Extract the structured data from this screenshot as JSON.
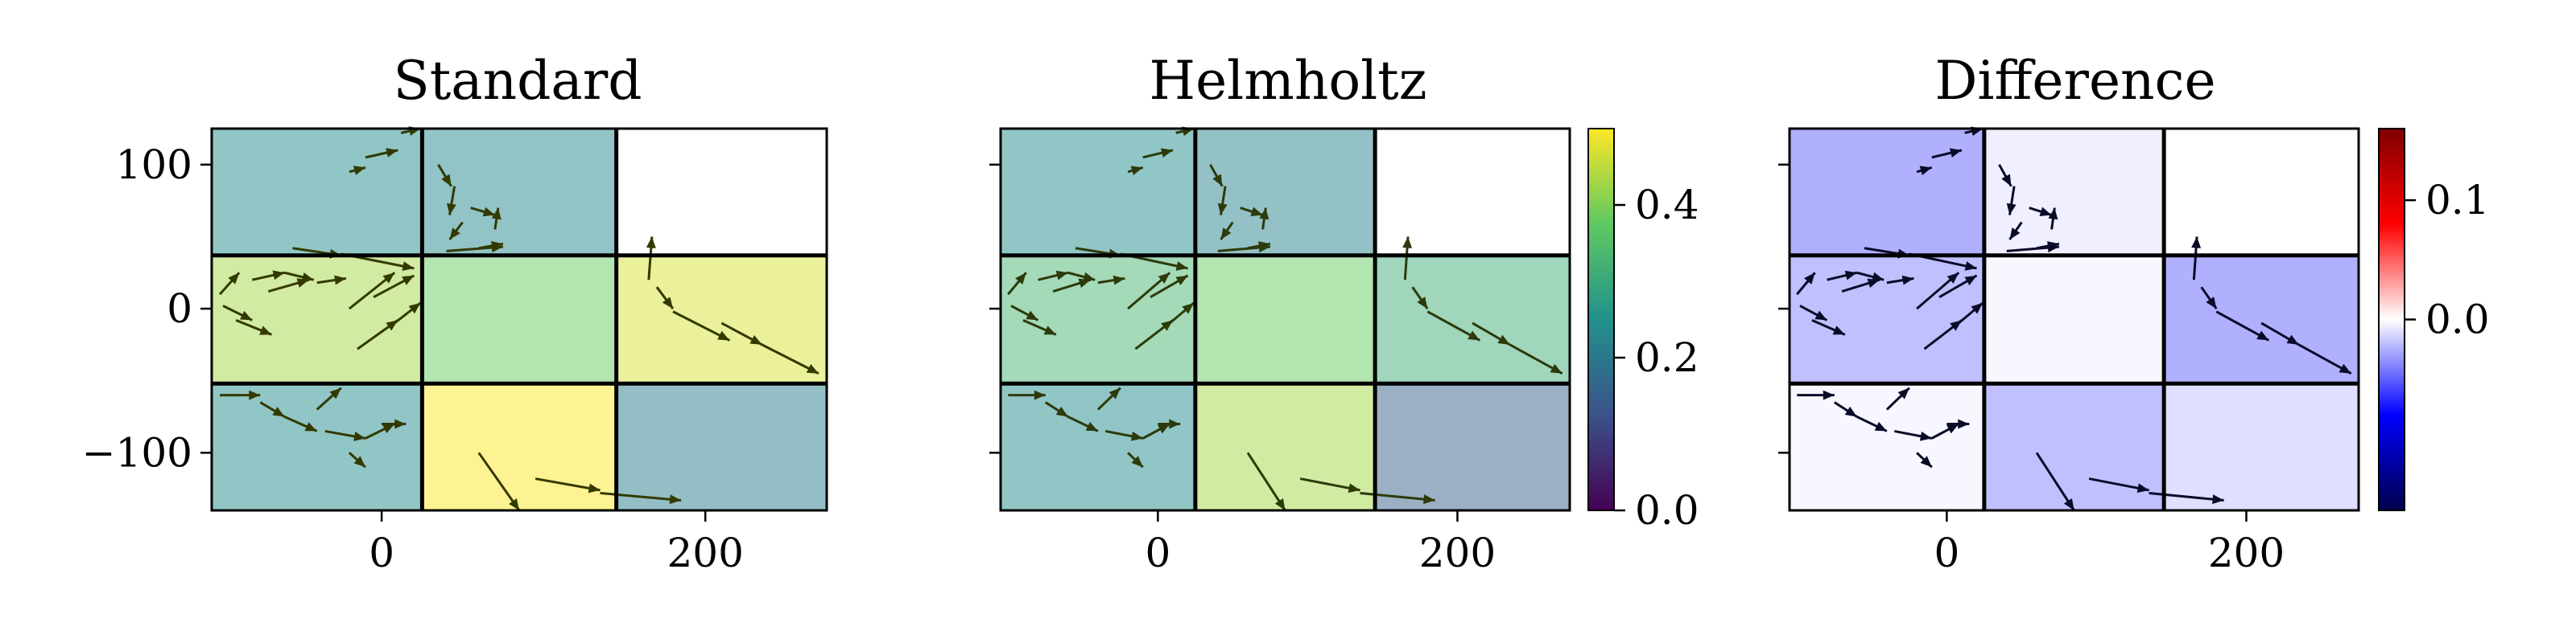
{
  "chart_data": [
    {
      "type": "heatmap",
      "title": "Standard",
      "xlim": [
        -105,
        275
      ],
      "ylim": [
        -140,
        125
      ],
      "x_ticks": [
        {
          "value": 0,
          "label": "0"
        },
        {
          "value": 200,
          "label": "200"
        }
      ],
      "y_ticks": [
        {
          "value": 100,
          "label": "100"
        },
        {
          "value": 0,
          "label": "0"
        },
        {
          "value": -100,
          "label": "−100"
        }
      ],
      "cells": [
        {
          "row": 0,
          "col": 0,
          "value": 0.24
        },
        {
          "row": 0,
          "col": 1,
          "value": 0.23
        },
        {
          "row": 0,
          "col": 2,
          "value": null
        },
        {
          "row": 1,
          "col": 0,
          "value": 0.43
        },
        {
          "row": 1,
          "col": 1,
          "value": 0.38
        },
        {
          "row": 1,
          "col": 2,
          "value": 0.47
        },
        {
          "row": 2,
          "col": 0,
          "value": 0.24
        },
        {
          "row": 2,
          "col": 1,
          "value": 0.5
        },
        {
          "row": 2,
          "col": 2,
          "value": 0.21
        }
      ]
    },
    {
      "type": "heatmap",
      "title": "Helmholtz",
      "xlim": [
        -105,
        275
      ],
      "ylim": [
        -140,
        125
      ],
      "x_ticks": [
        {
          "value": 0,
          "label": "0"
        },
        {
          "value": 200,
          "label": "200"
        }
      ],
      "cells": [
        {
          "row": 0,
          "col": 0,
          "value": 0.24
        },
        {
          "row": 0,
          "col": 1,
          "value": 0.22
        },
        {
          "row": 0,
          "col": 2,
          "value": null
        },
        {
          "row": 1,
          "col": 0,
          "value": 0.33
        },
        {
          "row": 1,
          "col": 1,
          "value": 0.38
        },
        {
          "row": 1,
          "col": 2,
          "value": 0.31
        },
        {
          "row": 2,
          "col": 0,
          "value": 0.24
        },
        {
          "row": 2,
          "col": 1,
          "value": 0.43
        },
        {
          "row": 2,
          "col": 2,
          "value": 0.15
        }
      ],
      "colorbar": {
        "colormap": "viridis",
        "range": [
          0.0,
          0.5
        ],
        "ticks": [
          {
            "value": 0.0,
            "label": "0.0"
          },
          {
            "value": 0.2,
            "label": "0.2"
          },
          {
            "value": 0.4,
            "label": "0.4"
          }
        ]
      }
    },
    {
      "type": "heatmap",
      "title": "Difference",
      "xlim": [
        -105,
        275
      ],
      "ylim": [
        -140,
        125
      ],
      "x_ticks": [
        {
          "value": 0,
          "label": "0"
        },
        {
          "value": 200,
          "label": "200"
        }
      ],
      "cells": [
        {
          "row": 0,
          "col": 0,
          "value": -0.05
        },
        {
          "row": 0,
          "col": 1,
          "value": -0.01
        },
        {
          "row": 0,
          "col": 2,
          "value": null
        },
        {
          "row": 1,
          "col": 0,
          "value": -0.04
        },
        {
          "row": 1,
          "col": 1,
          "value": -0.005
        },
        {
          "row": 1,
          "col": 2,
          "value": -0.05
        },
        {
          "row": 2,
          "col": 0,
          "value": -0.005
        },
        {
          "row": 2,
          "col": 1,
          "value": -0.04
        },
        {
          "row": 2,
          "col": 2,
          "value": -0.02
        }
      ],
      "colorbar": {
        "colormap": "seismic",
        "range": [
          -0.16,
          0.16
        ],
        "ticks": [
          {
            "value": 0.0,
            "label": "0.0"
          },
          {
            "value": 0.1,
            "label": "0.1"
          }
        ]
      }
    }
  ],
  "arrow_colors": {
    "Standard": "#333a00",
    "Helmholtz": "#2d3a0a",
    "Difference": "#0b0b28"
  },
  "grid_x_edges": [
    -105,
    25,
    145,
    275
  ],
  "grid_y_edges": [
    125,
    37,
    -52,
    -140
  ],
  "arrows": [
    {
      "x": 12,
      "y": 122,
      "u": 12,
      "v": 3
    },
    {
      "x": -10,
      "y": 105,
      "u": 20,
      "v": 5
    },
    {
      "x": -20,
      "y": 95,
      "u": 10,
      "v": 3
    },
    {
      "x": 35,
      "y": 100,
      "u": 8,
      "v": -15
    },
    {
      "x": 45,
      "y": 85,
      "u": -3,
      "v": -20
    },
    {
      "x": 55,
      "y": 70,
      "u": 15,
      "v": -5
    },
    {
      "x": 50,
      "y": 60,
      "u": -8,
      "v": -12
    },
    {
      "x": 60,
      "y": 42,
      "u": 15,
      "v": 3
    },
    {
      "x": 70,
      "y": 55,
      "u": 2,
      "v": 15
    },
    {
      "x": 40,
      "y": 40,
      "u": 35,
      "v": 3
    },
    {
      "x": -55,
      "y": 42,
      "u": 30,
      "v": -5
    },
    {
      "x": -25,
      "y": 38,
      "u": 45,
      "v": -10
    },
    {
      "x": -100,
      "y": 10,
      "u": 12,
      "v": 15
    },
    {
      "x": -80,
      "y": 20,
      "u": 20,
      "v": 5
    },
    {
      "x": -60,
      "y": 25,
      "u": 18,
      "v": -5
    },
    {
      "x": -70,
      "y": 12,
      "u": 25,
      "v": 8
    },
    {
      "x": -40,
      "y": 18,
      "u": 18,
      "v": 3
    },
    {
      "x": -20,
      "y": 0,
      "u": 28,
      "v": 25
    },
    {
      "x": -5,
      "y": 8,
      "u": 25,
      "v": 15
    },
    {
      "x": -15,
      "y": -28,
      "u": 25,
      "v": 20
    },
    {
      "x": -98,
      "y": 2,
      "u": 18,
      "v": -10
    },
    {
      "x": -90,
      "y": -8,
      "u": 22,
      "v": -10
    },
    {
      "x": 8,
      "y": -10,
      "u": 16,
      "v": 14
    },
    {
      "x": -100,
      "y": -60,
      "u": 25,
      "v": 0
    },
    {
      "x": -75,
      "y": -65,
      "u": 15,
      "v": -10
    },
    {
      "x": -60,
      "y": -75,
      "u": 20,
      "v": -10
    },
    {
      "x": -40,
      "y": -70,
      "u": 15,
      "v": 15
    },
    {
      "x": -35,
      "y": -85,
      "u": 25,
      "v": -5
    },
    {
      "x": -10,
      "y": -90,
      "u": 18,
      "v": 10
    },
    {
      "x": 0,
      "y": -80,
      "u": 15,
      "v": 0
    },
    {
      "x": -20,
      "y": -100,
      "u": 10,
      "v": -10
    },
    {
      "x": 60,
      "y": -100,
      "u": 25,
      "v": -40
    },
    {
      "x": 95,
      "y": -118,
      "u": 40,
      "v": -8
    },
    {
      "x": 135,
      "y": -128,
      "u": 50,
      "v": -5
    },
    {
      "x": 165,
      "y": 20,
      "u": 2,
      "v": 30
    },
    {
      "x": 170,
      "y": 15,
      "u": 10,
      "v": -15
    },
    {
      "x": 180,
      "y": -2,
      "u": 35,
      "v": -20
    },
    {
      "x": 210,
      "y": -10,
      "u": 25,
      "v": -15
    },
    {
      "x": 235,
      "y": -25,
      "u": 35,
      "v": -20
    }
  ]
}
